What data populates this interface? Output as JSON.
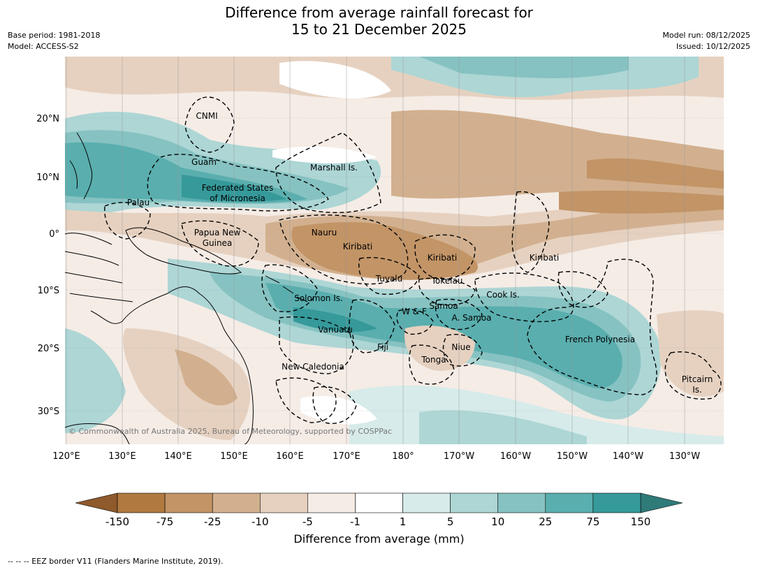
{
  "title": {
    "line1": "Difference from average rainfall forecast for",
    "line2": "15 to 21 December 2025"
  },
  "meta": {
    "base_period": "Base period: 1981-2018",
    "model": "Model: ACCESS-S2",
    "model_run": "Model run: 08/12/2025",
    "issued": "Issued: 10/12/2025"
  },
  "axes": {
    "lon_labels": [
      "120°E",
      "130°E",
      "140°E",
      "150°E",
      "160°E",
      "170°E",
      "180°",
      "170°W",
      "160°W",
      "150°W",
      "140°W",
      "130°W"
    ],
    "lat_labels": [
      "20°N",
      "10°N",
      "0°",
      "10°S",
      "20°S",
      "30°S"
    ]
  },
  "regions": [
    {
      "name": "CNMI"
    },
    {
      "name": "Guam"
    },
    {
      "name": "Marshall Is."
    },
    {
      "name": "Federated States"
    },
    {
      "name": "of Micronesia"
    },
    {
      "name": "Palau"
    },
    {
      "name": "Papua New"
    },
    {
      "name": "Guinea"
    },
    {
      "name": "Nauru"
    },
    {
      "name": "Kiribati"
    },
    {
      "name": "Kiribati"
    },
    {
      "name": "Kiribati"
    },
    {
      "name": "Tuvalu"
    },
    {
      "name": "Tokelau"
    },
    {
      "name": "Cook Is."
    },
    {
      "name": "Solomon Is."
    },
    {
      "name": "Samoa"
    },
    {
      "name": "W & F"
    },
    {
      "name": "A. Samoa"
    },
    {
      "name": "Vanuatu"
    },
    {
      "name": "Fiji"
    },
    {
      "name": "Niue"
    },
    {
      "name": "French Polynesia"
    },
    {
      "name": "Tonga"
    },
    {
      "name": "New Caledonia"
    },
    {
      "name": "Pitcairn"
    },
    {
      "name": "Is."
    }
  ],
  "copyright": "© Commonwealth of Australia 2025, Bureau of Meteorology, supported by COSPPac",
  "colorbar": {
    "ticks": [
      "-150",
      "-75",
      "-25",
      "-10",
      "-5",
      "-1",
      "1",
      "5",
      "10",
      "25",
      "75",
      "150"
    ],
    "colors": [
      "#b07940",
      "#c29466",
      "#d2b08f",
      "#e6d1c0",
      "#f5ece6",
      "#ffffff",
      "#d6ebea",
      "#add6d5",
      "#86c2c2",
      "#5aaeae",
      "#36999a"
    ],
    "under_color": "#8f5a2c",
    "over_color": "#2f7b7a",
    "label": "Difference from average (mm)"
  },
  "footnote": "--  --  -- EEZ border V11 (Flanders Marine Institute, 2019)."
}
